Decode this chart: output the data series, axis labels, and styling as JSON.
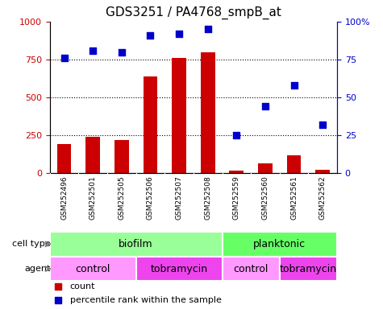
{
  "title": "GDS3251 / PA4768_smpB_at",
  "samples": [
    "GSM252496",
    "GSM252501",
    "GSM252505",
    "GSM252506",
    "GSM252507",
    "GSM252508",
    "GSM252559",
    "GSM252560",
    "GSM252561",
    "GSM252562"
  ],
  "counts": [
    190,
    240,
    220,
    640,
    760,
    800,
    15,
    65,
    115,
    20
  ],
  "percentile_ranks": [
    76,
    81,
    80,
    91,
    92,
    95,
    25,
    44,
    58,
    32
  ],
  "bar_color": "#cc0000",
  "dot_color": "#0000cc",
  "cell_type_groups": [
    {
      "label": "biofilm",
      "start": 0,
      "end": 5,
      "color": "#99ff99"
    },
    {
      "label": "planktonic",
      "start": 6,
      "end": 9,
      "color": "#66ff66"
    }
  ],
  "agent_groups": [
    {
      "label": "control",
      "start": 0,
      "end": 2,
      "color": "#ff99ff"
    },
    {
      "label": "tobramycin",
      "start": 3,
      "end": 5,
      "color": "#ee44ee"
    },
    {
      "label": "control",
      "start": 6,
      "end": 7,
      "color": "#ff99ff"
    },
    {
      "label": "tobramycin",
      "start": 8,
      "end": 9,
      "color": "#ee44ee"
    }
  ],
  "ylim_left": [
    0,
    1000
  ],
  "ylim_right": [
    0,
    100
  ],
  "yticks_left": [
    0,
    250,
    500,
    750,
    1000
  ],
  "yticks_right": [
    0,
    25,
    50,
    75,
    100
  ],
  "legend_count_label": "count",
  "legend_pct_label": "percentile rank within the sample",
  "sample_bg_color": "#cccccc",
  "title_fontsize": 11,
  "tick_fontsize": 8,
  "label_fontsize": 9
}
